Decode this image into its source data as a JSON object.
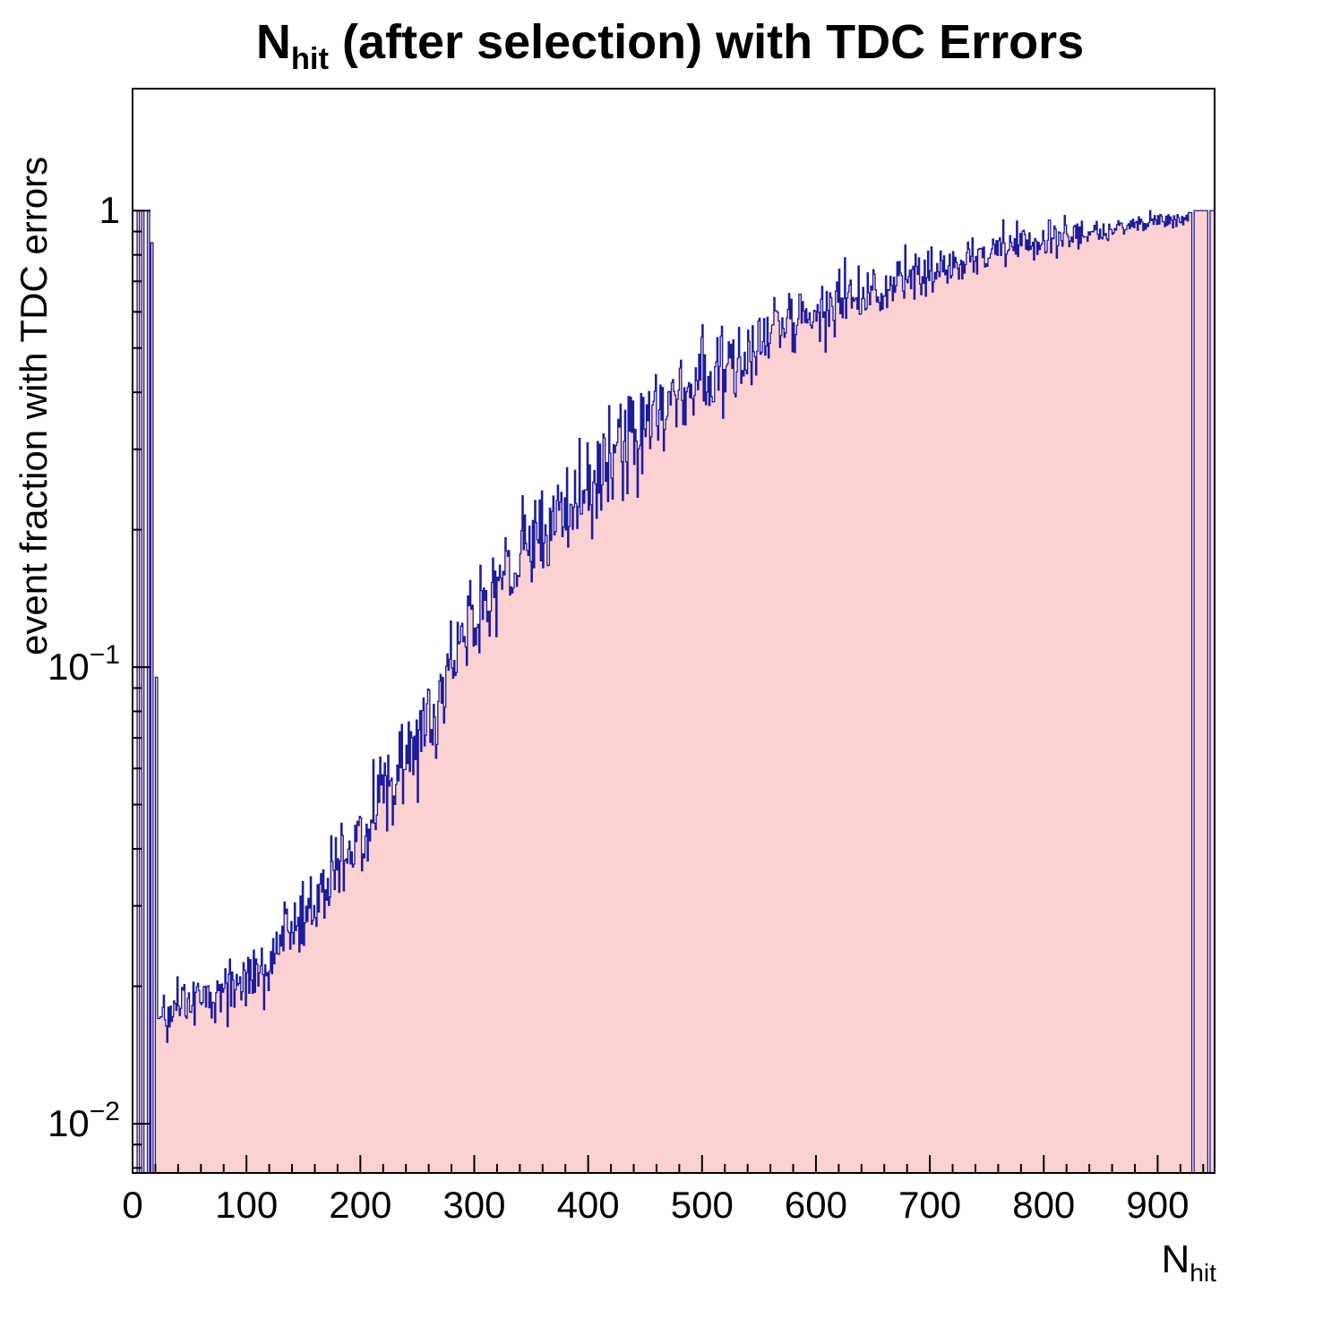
{
  "title": {
    "pre": "N",
    "sub": "hit",
    "post": " (after selection) with TDC Errors"
  },
  "axes": {
    "y_title": "event fraction with TDC errors",
    "x_title_pre": "N",
    "x_title_sub": "hit"
  },
  "chart_data": {
    "type": "histogram",
    "title": "N_hit (after selection) with TDC Errors",
    "xlabel": "N_hit",
    "ylabel": "event fraction with TDC errors",
    "y_scale": "log",
    "grid": false,
    "legend": "none",
    "x_range": [
      0,
      950
    ],
    "y_range": [
      0.0078,
      1.85
    ],
    "bin_width": 1,
    "x_ticks": {
      "major_step": 100,
      "minor_step": 20,
      "labels": [
        "0",
        "100",
        "200",
        "300",
        "400",
        "500",
        "600",
        "700",
        "800",
        "900"
      ]
    },
    "y_ticks": [
      {
        "value": 1,
        "base": "1",
        "exp": ""
      },
      {
        "value": 0.1,
        "base": "10",
        "exp": "−1"
      },
      {
        "value": 0.01,
        "base": "10",
        "exp": "−2"
      }
    ],
    "colors": {
      "fill": "#fcd1d1",
      "line": "#1c1c9c",
      "frame": "#000000",
      "text": "#000000"
    },
    "prefix_segments": [
      [
        4,
        6,
        1
      ],
      [
        6,
        8,
        0
      ],
      [
        8,
        10,
        1
      ],
      [
        10,
        13,
        0
      ],
      [
        13,
        15,
        1
      ],
      [
        15,
        16,
        0
      ],
      [
        16,
        18,
        0.85
      ],
      [
        18,
        20,
        0
      ],
      [
        20,
        22,
        0.095
      ],
      [
        22,
        24,
        0.017
      ]
    ],
    "suffix_segments": [
      [
        927,
        930,
        0.99
      ],
      [
        930,
        932,
        0
      ],
      [
        932,
        944,
        1
      ],
      [
        944,
        946,
        0
      ],
      [
        946,
        950,
        1
      ]
    ],
    "trend_anchors": [
      [
        24,
        0.017
      ],
      [
        50,
        0.019
      ],
      [
        75,
        0.019
      ],
      [
        100,
        0.021
      ],
      [
        125,
        0.024
      ],
      [
        150,
        0.029
      ],
      [
        175,
        0.035
      ],
      [
        200,
        0.042
      ],
      [
        225,
        0.053
      ],
      [
        250,
        0.068
      ],
      [
        275,
        0.095
      ],
      [
        300,
        0.13
      ],
      [
        325,
        0.155
      ],
      [
        350,
        0.18
      ],
      [
        375,
        0.215
      ],
      [
        400,
        0.25
      ],
      [
        425,
        0.295
      ],
      [
        450,
        0.34
      ],
      [
        475,
        0.385
      ],
      [
        500,
        0.43
      ],
      [
        525,
        0.47
      ],
      [
        550,
        0.51
      ],
      [
        575,
        0.555
      ],
      [
        600,
        0.6
      ],
      [
        625,
        0.635
      ],
      [
        650,
        0.67
      ],
      [
        675,
        0.71
      ],
      [
        700,
        0.75
      ],
      [
        725,
        0.785
      ],
      [
        750,
        0.82
      ],
      [
        775,
        0.845
      ],
      [
        800,
        0.87
      ],
      [
        825,
        0.89
      ],
      [
        850,
        0.91
      ],
      [
        875,
        0.925
      ],
      [
        900,
        0.945
      ],
      [
        927,
        0.96
      ]
    ],
    "noise_sigma_log10": [
      [
        24,
        0.03
      ],
      [
        150,
        0.042
      ],
      [
        350,
        0.06
      ],
      [
        500,
        0.05
      ],
      [
        650,
        0.035
      ],
      [
        800,
        0.018
      ],
      [
        927,
        0.01
      ]
    ],
    "seed": 20240613
  }
}
